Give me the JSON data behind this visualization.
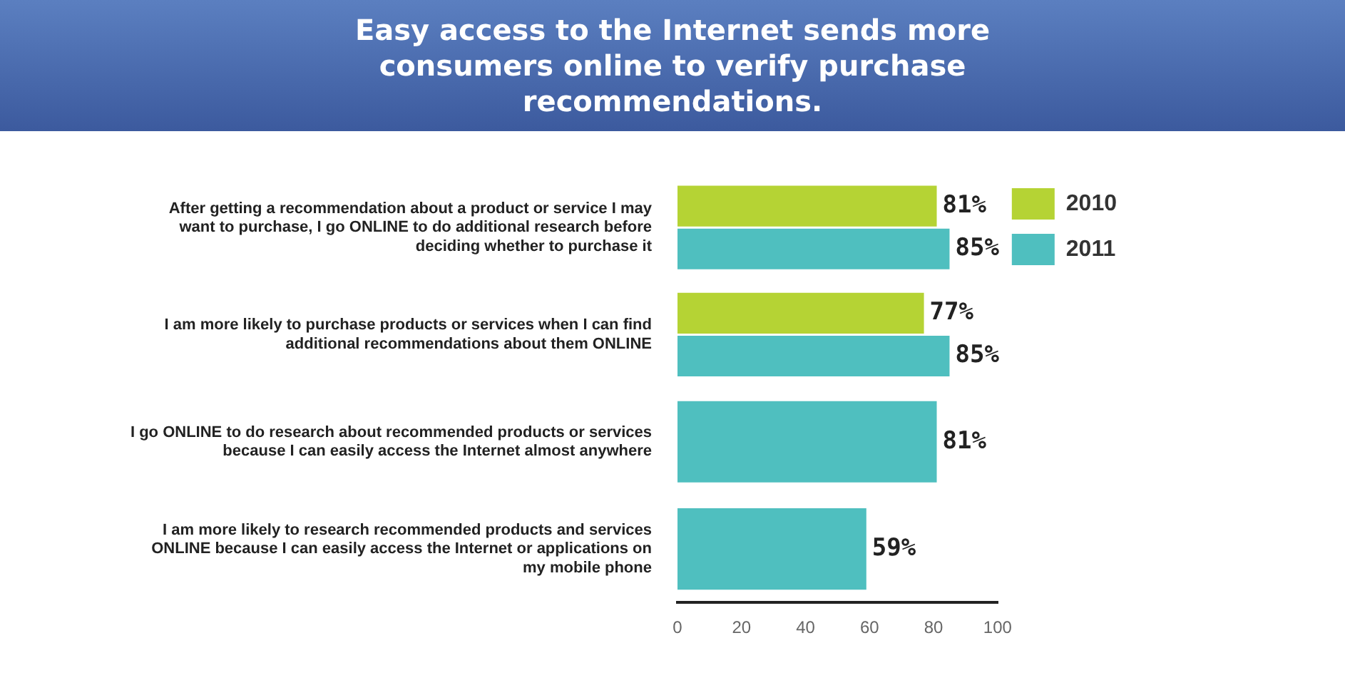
{
  "chart_data": {
    "type": "bar",
    "orientation": "horizontal",
    "title": "Easy access to the Internet sends more consumers online to verify purchase recommendations.",
    "categories": [
      "After getting a recommendation about a product or service I may want to purchase, I go ONLINE to do additional research before deciding whether to purchase it",
      "I am more likely to purchase products or services when I can find additional recommendations about them ONLINE",
      "I go ONLINE to do research about recommended products or services because I can easily access the Internet almost anywhere",
      "I am more likely to research recommended products and services ONLINE because I can easily access the Internet or applications on my mobile phone"
    ],
    "series": [
      {
        "name": "2010",
        "color": "#b5d334",
        "values": [
          81,
          77,
          null,
          null
        ],
        "value_labels": [
          "81%",
          "77%",
          null,
          null
        ]
      },
      {
        "name": "2011",
        "color": "#4fbfbf",
        "values": [
          85,
          85,
          81,
          59
        ],
        "value_labels": [
          "85%",
          "85%",
          "81%",
          "59%"
        ]
      }
    ],
    "xlim": [
      0,
      100
    ],
    "xticks": [
      0,
      20,
      40,
      60,
      80,
      100
    ],
    "grid": false,
    "legend": "top right"
  }
}
